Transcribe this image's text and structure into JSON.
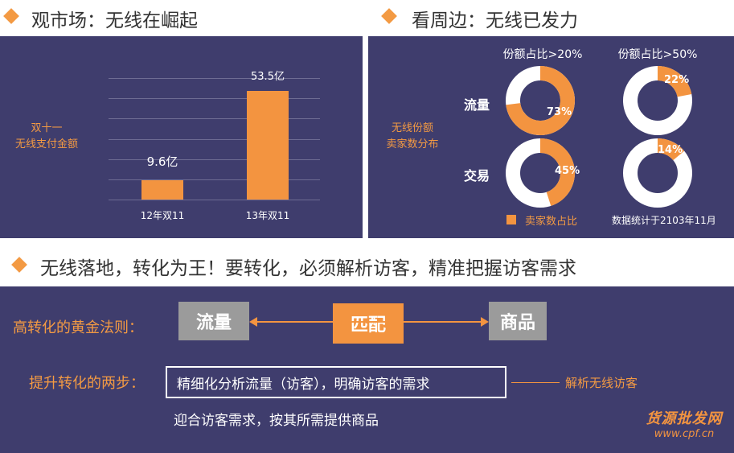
{
  "section1": {
    "heading": "观市场：无线在崛起",
    "side_label_line1": "双十一",
    "side_label_line2": "无线支付金额",
    "bar1_value_label": "9.6亿",
    "bar2_value_label": "53.5亿",
    "category1": "12年双11",
    "category2": "13年双11"
  },
  "chart_data": [
    {
      "type": "bar",
      "title": "",
      "xlabel": "",
      "ylabel": "双十一 无线支付金额",
      "categories": [
        "12年双11",
        "13年双11"
      ],
      "values": [
        9.6,
        53.5
      ],
      "units": "亿"
    },
    {
      "type": "pie",
      "title": "份额占比>20%",
      "series": [
        {
          "name": "流量",
          "values": [
            73,
            27
          ]
        },
        {
          "name": "交易",
          "values": [
            45,
            55
          ]
        }
      ]
    },
    {
      "type": "pie",
      "title": "份额占比>50%",
      "series": [
        {
          "name": "流量",
          "values": [
            22,
            78
          ]
        },
        {
          "name": "交易",
          "values": [
            14,
            86
          ]
        }
      ]
    }
  ],
  "section2": {
    "heading": "看周边：无线已发力",
    "side_label_line1": "无线份额",
    "side_label_line2": "卖家数分布",
    "col1_title": "份额占比>20%",
    "col2_title": "份额占比>50%",
    "row1_label": "流量",
    "row2_label": "交易",
    "d1_label": "73%",
    "d2_label": "22%",
    "d3_label": "45%",
    "d4_label": "14%",
    "legend_label": "卖家数占比",
    "footnote": "数据统计于2103年11月",
    "colors": {
      "accent": "#f39440",
      "ring": "#ffffff"
    }
  },
  "section3": {
    "heading": "无线落地，转化为王！要转化，必须解析访客，精准把握访客需求",
    "rule_label": "高转化的黄金法则：",
    "box_left": "流量",
    "box_middle": "匹配",
    "box_right": "商品",
    "steps_label": "提升转化的两步：",
    "step1": "精细化分析流量（访客），明确访客的需求",
    "step1_note": "解析无线访客",
    "step2": "迎合访客需求，按其所需提供商品",
    "watermark_line1": "货源批发网",
    "watermark_line2": "www.cpf.cn"
  }
}
